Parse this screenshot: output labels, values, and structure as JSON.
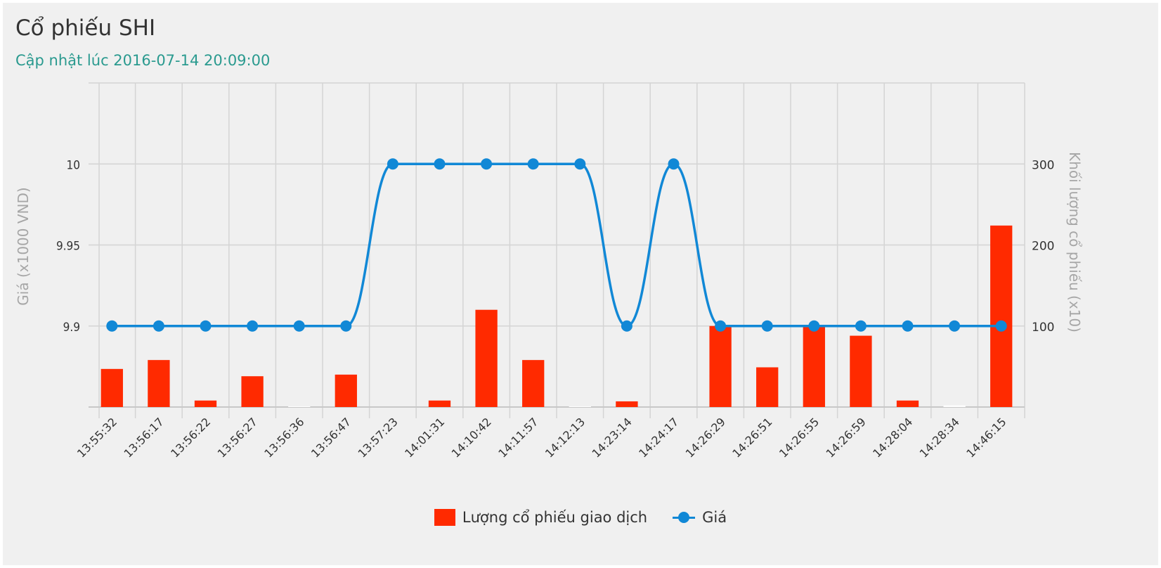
{
  "chart_data": {
    "type": "bar+line",
    "title": "Cổ phiếu SHI",
    "subtitle": "Cập nhật lúc 2016-07-14 20:09:00",
    "categories": [
      "13:55:32",
      "13:56:17",
      "13:56:22",
      "13:56:27",
      "13:56:36",
      "13:56:47",
      "13:57:23",
      "14:01:31",
      "14:10:42",
      "14:11:57",
      "14:12:13",
      "14:23:14",
      "14:24:17",
      "14:26:29",
      "14:26:51",
      "14:26:55",
      "14:26:59",
      "14:28:04",
      "14:28:34",
      "14:46:15"
    ],
    "series": [
      {
        "name": "Lượng cổ phiếu giao dịch",
        "type": "bar",
        "axis": "right",
        "color": "#ff2a00",
        "values": [
          47,
          58,
          8,
          38,
          1,
          40,
          0,
          8,
          120,
          58,
          1,
          7,
          0,
          100,
          49,
          100,
          88,
          8,
          2,
          224
        ]
      },
      {
        "name": "Giá",
        "type": "line",
        "axis": "left",
        "color": "#1188d6",
        "values": [
          9.9,
          9.9,
          9.9,
          9.9,
          9.9,
          9.9,
          10,
          10,
          10,
          10,
          10,
          9.9,
          10,
          9.9,
          9.9,
          9.9,
          9.9,
          9.9,
          9.9,
          9.9
        ]
      }
    ],
    "ylabel_left": "Giá (x1000 VND)",
    "ylabel_right": "Khối lượng cổ phiếu (x10)",
    "yticks_left": [
      "9.9",
      "9.95",
      "10"
    ],
    "yticks_right": [
      "100",
      "200",
      "300"
    ],
    "ylim_left": [
      9.85,
      10.05
    ],
    "ylim_right": [
      0,
      400
    ],
    "grid": true,
    "legend_position": "bottom-center"
  }
}
